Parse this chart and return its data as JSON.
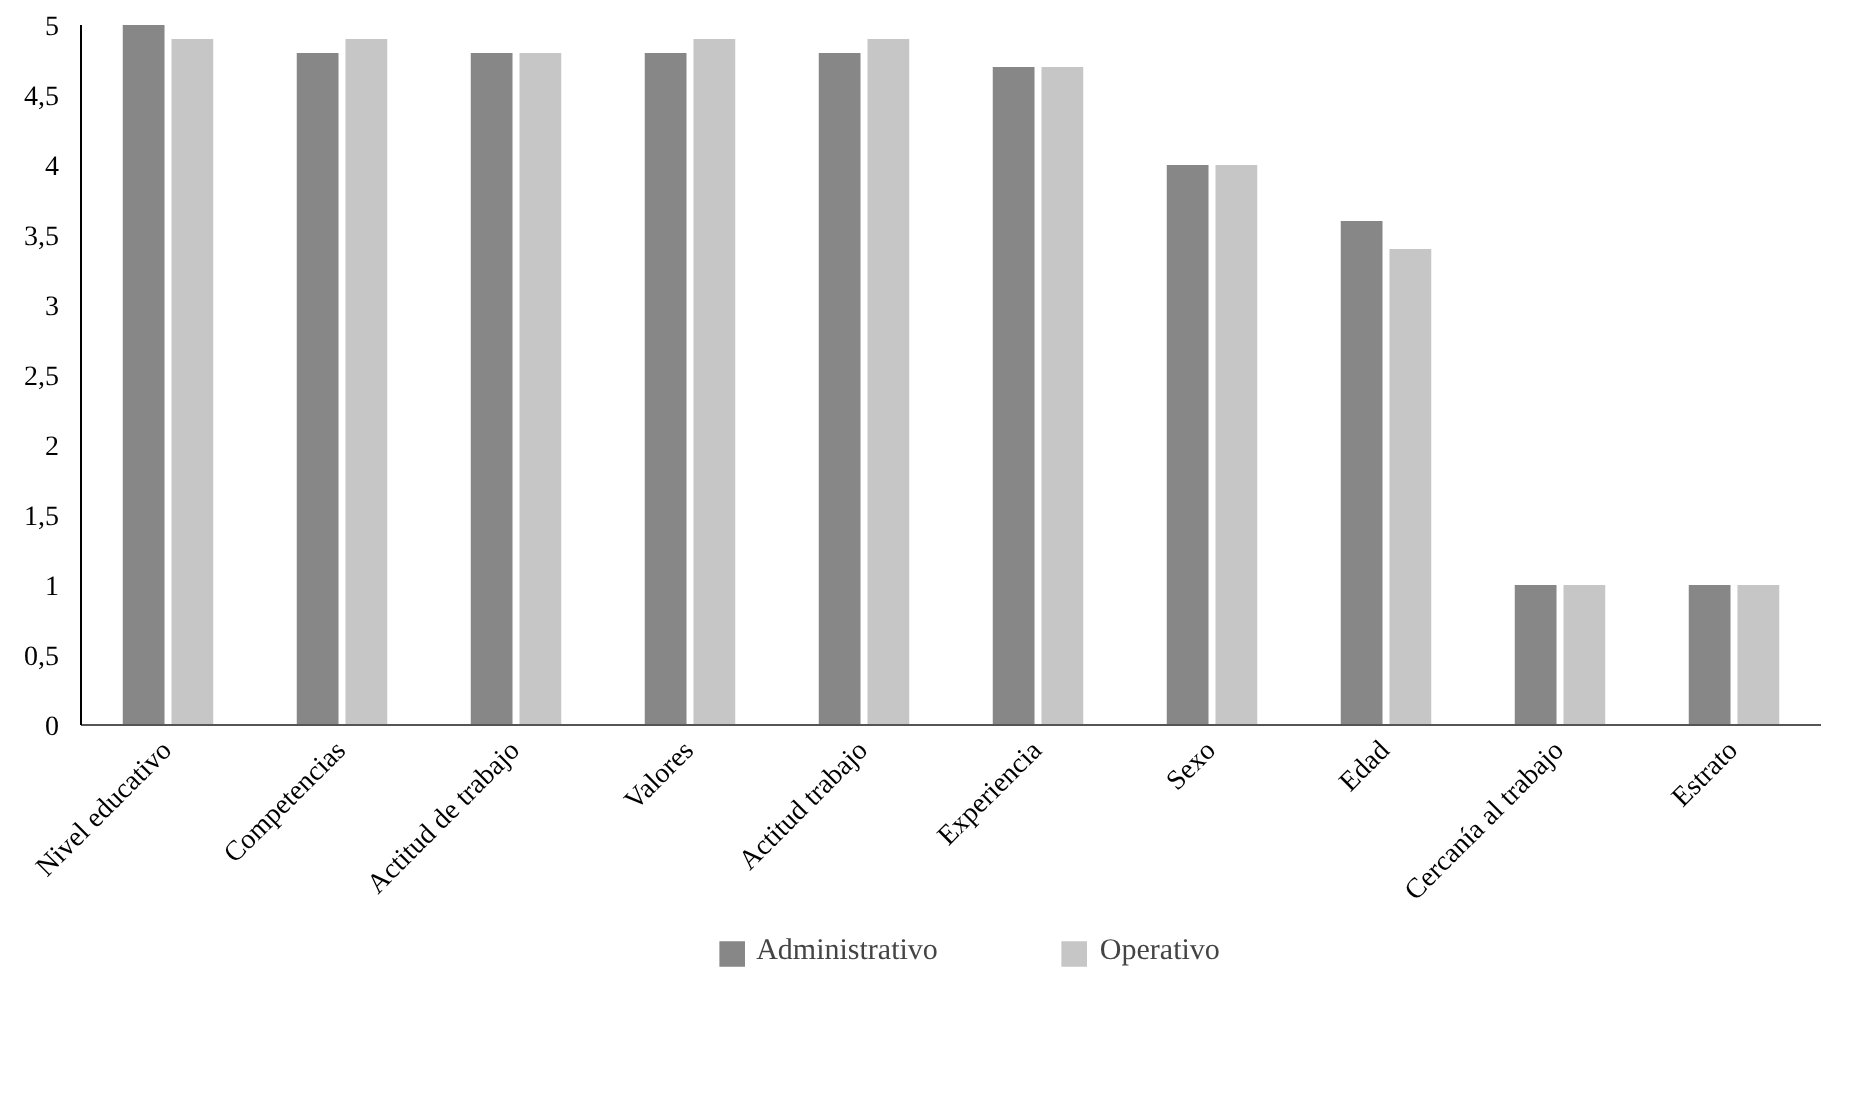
{
  "chart_data": {
    "type": "bar",
    "categories": [
      "Nivel educativo",
      "Competencias",
      "Actitud de trabajo",
      "Valores",
      "Actitud trabajo",
      "Experiencia",
      "Sexo",
      "Edad",
      "Cercanía al trabajo",
      "Estrato"
    ],
    "series": [
      {
        "name": "Administrativo",
        "color": "#878787",
        "values": [
          5.0,
          4.8,
          4.8,
          4.8,
          4.8,
          4.7,
          4.0,
          3.6,
          1.0,
          1.0
        ]
      },
      {
        "name": "Operativo",
        "color": "#c6c6c6",
        "values": [
          4.9,
          4.9,
          4.8,
          4.9,
          4.9,
          4.7,
          4.0,
          3.4,
          1.0,
          1.0
        ]
      }
    ],
    "ylim": [
      0,
      5
    ],
    "yticks": [
      0,
      {
        "value": 0.5,
        "label": "0,5"
      },
      1,
      {
        "value": 1.5,
        "label": "1,5"
      },
      2,
      {
        "value": 2.5,
        "label": "2,5"
      },
      3,
      {
        "value": 3.5,
        "label": "3,5"
      },
      4,
      {
        "value": 4.5,
        "label": "4,5"
      },
      5
    ],
    "grid": false,
    "legend": "bottom"
  }
}
